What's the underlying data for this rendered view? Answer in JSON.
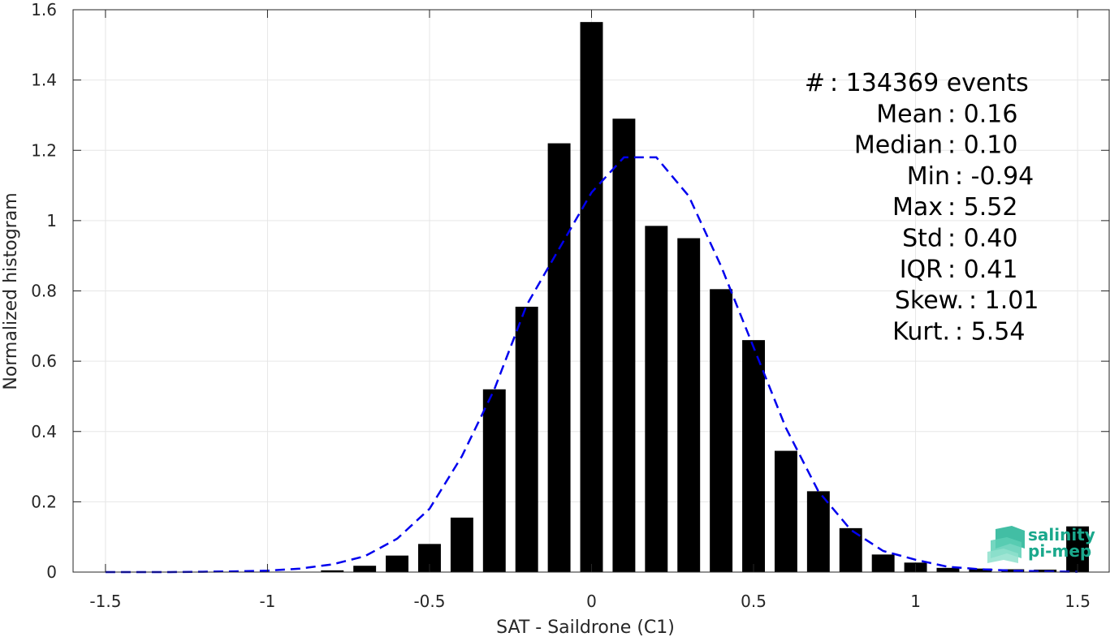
{
  "chart_data": {
    "type": "bar",
    "xlabel": "SAT - Saildrone (C1)",
    "ylabel": "Normalized histogram",
    "xlim": [
      -1.6,
      1.6
    ],
    "ylim": [
      0,
      1.6
    ],
    "xticks": [
      -1.5,
      -1,
      -0.5,
      0,
      0.5,
      1,
      1.5
    ],
    "xtick_labels": [
      "-1.5",
      "-1",
      "-0.5",
      "0",
      "0.5",
      "1",
      "1.5"
    ],
    "yticks": [
      0,
      0.2,
      0.4,
      0.6,
      0.8,
      1,
      1.2,
      1.4,
      1.6
    ],
    "ytick_labels": [
      "0",
      "0.2",
      "0.4",
      "0.6",
      "0.8",
      "1",
      "1.2",
      "1.4",
      "1.6"
    ],
    "grid": true,
    "bar_color": "#000000",
    "bins": [
      -1.5,
      -1.4,
      -1.3,
      -1.2,
      -1.1,
      -1.0,
      -0.9,
      -0.8,
      -0.7,
      -0.6,
      -0.5,
      -0.4,
      -0.3,
      -0.2,
      -0.1,
      0.0,
      0.1,
      0.2,
      0.3,
      0.4,
      0.5,
      0.6,
      0.7,
      0.8,
      0.9,
      1.0,
      1.1,
      1.2,
      1.3,
      1.4,
      1.5
    ],
    "values": [
      0,
      0,
      0,
      0,
      0,
      0,
      0.001,
      0.005,
      0.018,
      0.047,
      0.08,
      0.155,
      0.52,
      0.755,
      1.22,
      1.565,
      1.29,
      0.985,
      0.95,
      0.805,
      0.66,
      0.345,
      0.23,
      0.125,
      0.05,
      0.027,
      0.012,
      0.01,
      0.008,
      0.007,
      0.13
    ],
    "fit_curve": {
      "style": "dashed",
      "color": "#0000ee",
      "x": [
        -1.5,
        -1.4,
        -1.3,
        -1.2,
        -1.1,
        -1.0,
        -0.9,
        -0.8,
        -0.7,
        -0.6,
        -0.5,
        -0.4,
        -0.3,
        -0.2,
        -0.1,
        0.0,
        0.1,
        0.2,
        0.3,
        0.4,
        0.5,
        0.6,
        0.7,
        0.8,
        0.9,
        1.0,
        1.1,
        1.2,
        1.3,
        1.4,
        1.5
      ],
      "y": [
        0.0,
        0.0,
        0.0,
        0.001,
        0.002,
        0.004,
        0.01,
        0.022,
        0.045,
        0.095,
        0.18,
        0.33,
        0.52,
        0.76,
        0.92,
        1.08,
        1.18,
        1.18,
        1.07,
        0.87,
        0.64,
        0.41,
        0.23,
        0.12,
        0.06,
        0.035,
        0.015,
        0.008,
        0.004,
        0.002,
        0.001
      ]
    },
    "stats": [
      {
        "label": "#",
        "sep": " : ",
        "value": "134369 events"
      },
      {
        "label": "Mean",
        "sep": " : ",
        "value": "0.16"
      },
      {
        "label": "Median",
        "sep": " : ",
        "value": "0.10"
      },
      {
        "label": "Min",
        "sep": " : ",
        "value": "-0.94"
      },
      {
        "label": "Max",
        "sep": " : ",
        "value": "5.52"
      },
      {
        "label": "Std",
        "sep": " : ",
        "value": "0.40"
      },
      {
        "label": "IQR",
        "sep": " : ",
        "value": "0.41"
      },
      {
        "label": "Skew.",
        "sep": " : ",
        "value": "1.01"
      },
      {
        "label": "Kurt.",
        "sep": " : ",
        "value": "5.54"
      }
    ]
  },
  "logo": {
    "line1": "salinity",
    "line2": "pi-mep"
  }
}
